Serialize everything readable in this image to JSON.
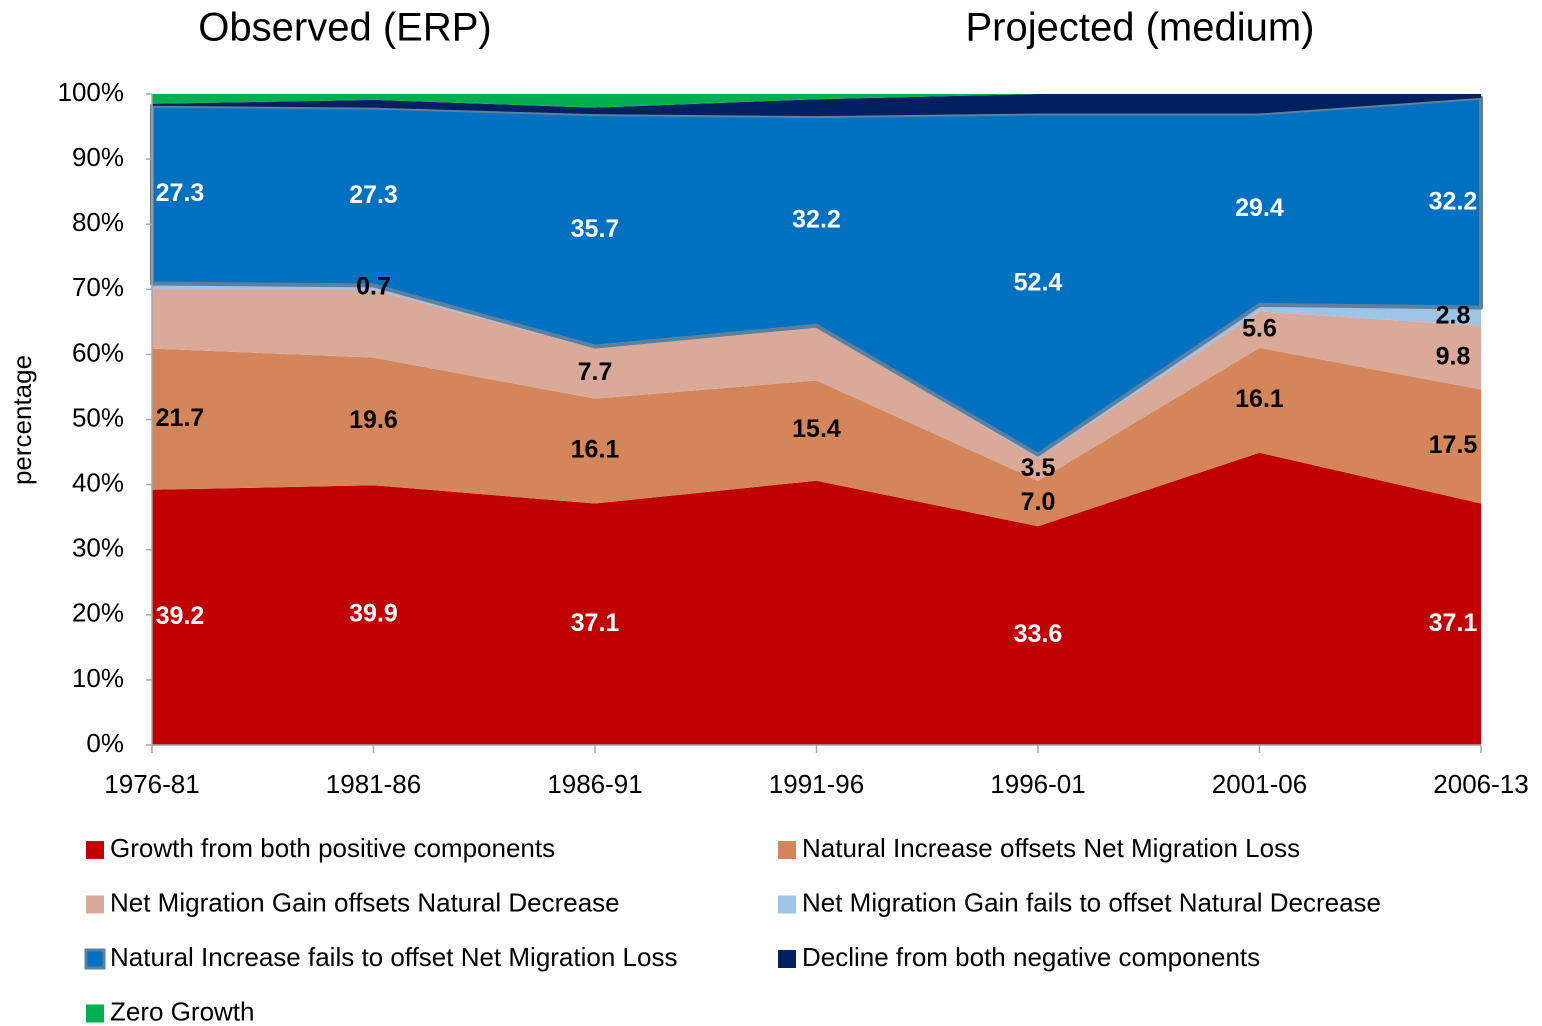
{
  "chart_data": {
    "type": "stacked-area",
    "annotations": [
      "Observed (ERP)",
      "Projected (medium)"
    ],
    "y_label": "percentage",
    "categories": [
      "1976-81",
      "1981-86",
      "1986-91",
      "1991-96",
      "1996-01",
      "2001-06",
      "2006-13"
    ],
    "ylim": [
      0,
      100
    ],
    "yticks": [
      {
        "value": 0,
        "label": "0%"
      },
      {
        "value": 10,
        "label": "10%"
      },
      {
        "value": 20,
        "label": "20%"
      },
      {
        "value": 30,
        "label": "30%"
      },
      {
        "value": 40,
        "label": "40%"
      },
      {
        "value": 50,
        "label": "50%"
      },
      {
        "value": 60,
        "label": "60%"
      },
      {
        "value": 70,
        "label": "70%"
      },
      {
        "value": 80,
        "label": "80%"
      },
      {
        "value": 90,
        "label": "90%"
      },
      {
        "value": 100,
        "label": "100%"
      }
    ],
    "grid": false,
    "series": [
      {
        "name": "Growth from both positive components",
        "color": "#c00000",
        "label_color": "#ffffff",
        "values": [
          39.2,
          39.9,
          37.1,
          40.6,
          33.6,
          44.9,
          37.1
        ],
        "value_labels": [
          "39.2",
          "39.9",
          "37.1",
          null,
          "33.6",
          null,
          "37.1"
        ]
      },
      {
        "name": "Natural Increase offsets Net Migration Loss",
        "color": "#d5855a",
        "label_color": "#000000",
        "values": [
          21.7,
          19.6,
          16.1,
          15.4,
          7.0,
          16.1,
          17.5
        ],
        "value_labels": [
          "21.7",
          "19.6",
          "16.1",
          "15.4",
          "7.0",
          "16.1",
          "17.5"
        ]
      },
      {
        "name": "Net Migration Gain offsets Natural Decrease",
        "color": "#d9aa99",
        "label_color": "#000000",
        "values": [
          9.0,
          10.4,
          7.7,
          8.1,
          3.5,
          5.6,
          9.8
        ],
        "value_labels": [
          null,
          null,
          "7.7",
          null,
          "3.5",
          "5.6",
          "9.8"
        ]
      },
      {
        "name": "Net Migration Gain fails to offset Natural Decrease",
        "color": "#9dc3e6",
        "label_color": "#000000",
        "values": [
          1.0,
          0.7,
          0.3,
          0.3,
          0.5,
          1.0,
          2.8
        ],
        "value_labels": [
          null,
          "0.7",
          null,
          null,
          null,
          null,
          "2.8"
        ]
      },
      {
        "name": "Natural Increase fails to offset Net Migration Loss",
        "color": "#0070c0",
        "stroke": "#5f7f9f",
        "label_color": "#ffffff",
        "values": [
          27.3,
          27.3,
          35.7,
          32.2,
          52.4,
          29.4,
          32.2
        ],
        "value_labels": [
          "27.3",
          "27.3",
          "35.7",
          "32.2",
          "52.4",
          "29.4",
          "32.2"
        ]
      },
      {
        "name": "Decline from both negative components",
        "color": "#002060",
        "values": [
          0.3,
          1.2,
          1.0,
          2.6,
          3.0,
          3.0,
          0.6
        ]
      },
      {
        "name": "Zero Growth",
        "color": "#00b050",
        "values": [
          1.5,
          0.9,
          2.1,
          0.8,
          0,
          0,
          0
        ]
      }
    ]
  }
}
